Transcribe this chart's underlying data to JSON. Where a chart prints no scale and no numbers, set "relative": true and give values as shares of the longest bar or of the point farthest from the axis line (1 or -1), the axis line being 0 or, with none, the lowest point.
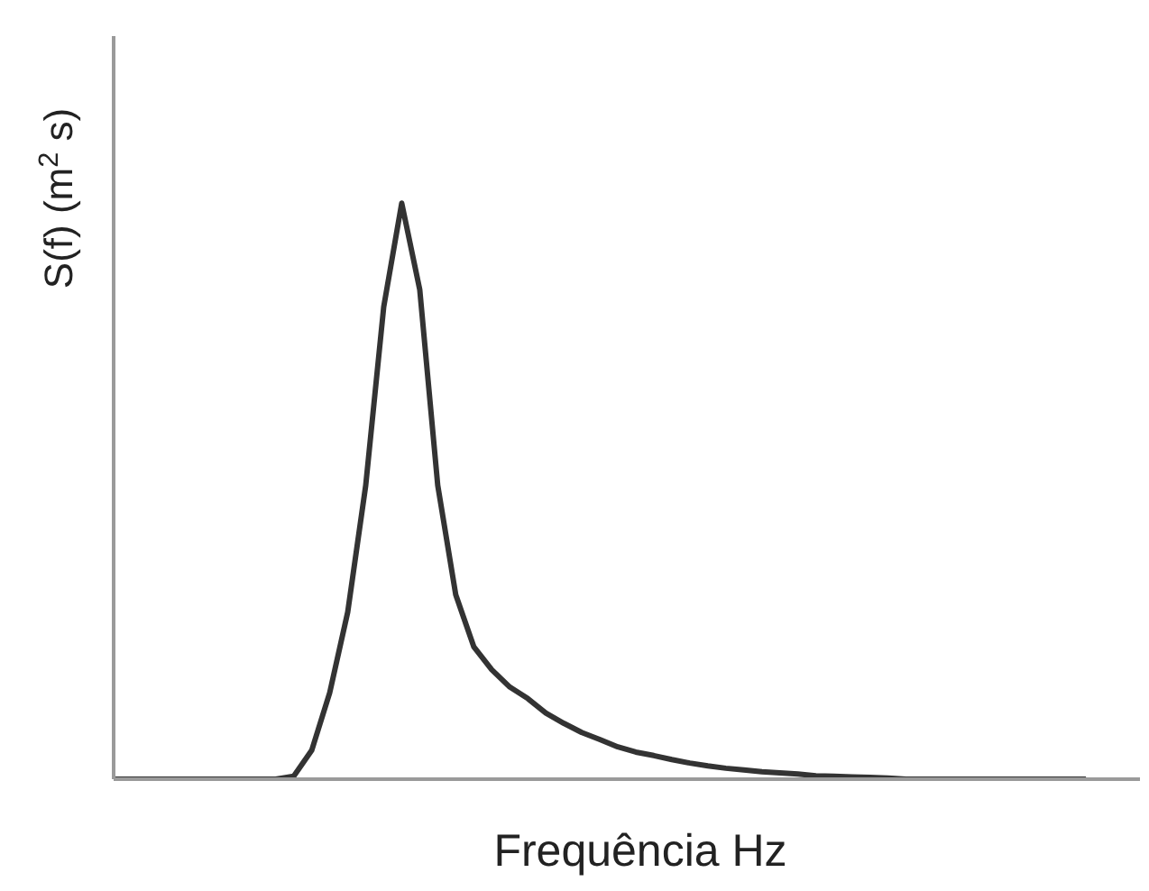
{
  "chart_data": {
    "type": "line",
    "xlabel": "Frequência Hz",
    "ylabel": "S(f)  (m$^{2}$ s)",
    "relative": true,
    "marker": "none",
    "line_style": "solid",
    "categories": [
      null,
      null,
      null,
      null,
      null,
      null,
      null,
      null,
      null,
      null,
      null,
      null,
      null,
      null,
      null,
      null,
      null,
      null,
      null,
      null,
      null,
      null,
      null,
      null,
      null,
      null,
      null,
      null,
      null,
      null,
      null,
      null,
      null,
      null,
      null,
      null,
      null,
      null,
      null,
      null,
      null,
      null,
      null,
      null,
      null,
      null,
      null,
      null,
      null,
      null,
      null,
      null,
      null,
      null,
      null,
      null,
      null,
      null
    ],
    "series": [
      {
        "color": "#333333",
        "values": [
          0,
          0,
          0,
          0,
          0,
          0,
          0,
          0,
          0,
          0,
          0.005,
          0.05,
          0.15,
          0.29,
          0.51,
          0.82,
          1,
          0.85,
          0.51,
          0.32,
          0.23,
          0.19,
          0.16,
          0.14,
          0.115,
          0.097,
          0.081,
          0.069,
          0.056,
          0.047,
          0.041,
          0.034,
          0.028,
          0.023,
          0.019,
          0.016,
          0.013,
          0.011,
          0.009,
          0.006,
          0.005,
          0.004,
          0.003,
          0.002,
          0,
          0,
          0,
          0,
          0,
          0,
          0,
          0,
          0,
          0,
          0,
          null,
          null,
          null
        ]
      }
    ]
  }
}
